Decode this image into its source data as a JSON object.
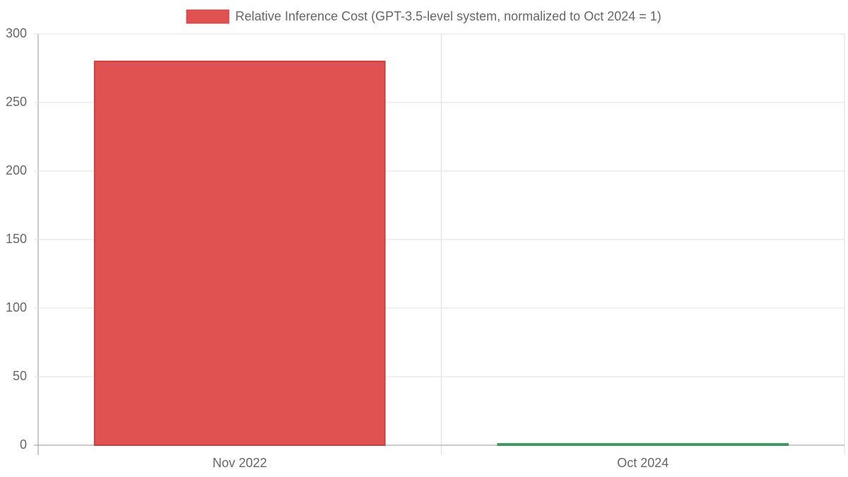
{
  "chart_data": {
    "type": "bar",
    "categories": [
      "Nov 2022",
      "Oct 2024"
    ],
    "series": [
      {
        "name": "Relative Inference Cost (GPT-3.5-level system, normalized to Oct 2024 = 1)",
        "color": "#e05252",
        "bar_colors": [
          "#e05252",
          "#5cb87a"
        ],
        "border_colors": [
          "#c94040",
          "#3d9a5f"
        ],
        "values": [
          280,
          1
        ]
      }
    ],
    "ylim": [
      0,
      300
    ],
    "yticks": [
      0,
      50,
      100,
      150,
      200,
      250,
      300
    ],
    "grid": true
  }
}
